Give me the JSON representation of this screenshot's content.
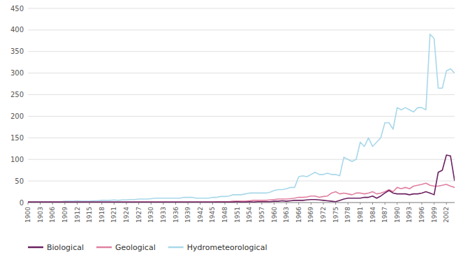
{
  "chart_data": {
    "type": "line",
    "x": [
      1900,
      1901,
      1902,
      1903,
      1904,
      1905,
      1906,
      1907,
      1908,
      1909,
      1910,
      1911,
      1912,
      1913,
      1914,
      1915,
      1916,
      1917,
      1918,
      1919,
      1920,
      1921,
      1922,
      1923,
      1924,
      1925,
      1926,
      1927,
      1928,
      1929,
      1930,
      1931,
      1932,
      1933,
      1934,
      1935,
      1936,
      1937,
      1938,
      1939,
      1940,
      1941,
      1942,
      1943,
      1944,
      1945,
      1946,
      1947,
      1948,
      1949,
      1950,
      1951,
      1952,
      1953,
      1954,
      1955,
      1956,
      1957,
      1958,
      1959,
      1960,
      1961,
      1962,
      1963,
      1964,
      1965,
      1966,
      1967,
      1968,
      1969,
      1970,
      1971,
      1972,
      1973,
      1974,
      1975,
      1976,
      1977,
      1978,
      1979,
      1980,
      1981,
      1982,
      1983,
      1984,
      1985,
      1986,
      1987,
      1988,
      1989,
      1990,
      1991,
      1992,
      1993,
      1994,
      1995,
      1996,
      1997,
      1998,
      1999,
      2000,
      2001,
      2002,
      2003,
      2004
    ],
    "series": [
      {
        "name": "Biological",
        "color": "#6b2060",
        "values": [
          1,
          1,
          1,
          1,
          1,
          1,
          1,
          1,
          1,
          1,
          1,
          1,
          1,
          1,
          1,
          1,
          1,
          1,
          1,
          1,
          1,
          1,
          1,
          1,
          1,
          1,
          1,
          1,
          1,
          1,
          1,
          1,
          1,
          1,
          1,
          1,
          1,
          1,
          1,
          1,
          1,
          1,
          1,
          1,
          1,
          1,
          1,
          1,
          1,
          1,
          1,
          2,
          1,
          1,
          2,
          1,
          2,
          2,
          2,
          2,
          3,
          3,
          4,
          3,
          4,
          5,
          5,
          5,
          6,
          7,
          7,
          6,
          5,
          4,
          3,
          2,
          5,
          8,
          10,
          10,
          10,
          10,
          12,
          12,
          15,
          10,
          15,
          22,
          28,
          22,
          20,
          20,
          20,
          18,
          20,
          20,
          22,
          25,
          22,
          18,
          70,
          75,
          110,
          108,
          50
        ]
      },
      {
        "name": "Geological",
        "color": "#e080a0",
        "values": [
          1,
          1,
          1,
          1,
          1,
          1,
          1,
          1,
          1,
          1,
          1,
          1,
          1,
          1,
          1,
          1,
          1,
          1,
          1,
          1,
          1,
          1,
          1,
          1,
          1,
          1,
          1,
          1,
          1,
          1,
          1,
          1,
          1,
          1,
          1,
          1,
          1,
          1,
          1,
          1,
          1,
          1,
          1,
          1,
          1,
          1,
          2,
          2,
          2,
          2,
          3,
          3,
          3,
          3,
          4,
          5,
          5,
          5,
          5,
          6,
          7,
          8,
          8,
          8,
          9,
          10,
          12,
          12,
          13,
          15,
          15,
          12,
          14,
          15,
          22,
          25,
          20,
          22,
          20,
          18,
          22,
          22,
          20,
          22,
          25,
          20,
          22,
          25,
          30,
          25,
          35,
          32,
          35,
          32,
          38,
          40,
          42,
          45,
          40,
          38,
          38,
          40,
          42,
          38,
          35
        ]
      },
      {
        "name": "Hydrometeorological",
        "color": "#a8d8ea",
        "values": [
          2,
          2,
          2,
          2,
          2,
          2,
          2,
          2,
          2,
          3,
          3,
          3,
          4,
          3,
          3,
          3,
          4,
          4,
          5,
          5,
          5,
          6,
          5,
          6,
          6,
          7,
          7,
          8,
          8,
          8,
          9,
          10,
          10,
          10,
          10,
          10,
          10,
          10,
          12,
          12,
          12,
          10,
          10,
          10,
          10,
          12,
          12,
          14,
          14,
          15,
          18,
          18,
          18,
          20,
          22,
          22,
          22,
          22,
          22,
          24,
          28,
          30,
          30,
          32,
          35,
          35,
          60,
          62,
          60,
          65,
          70,
          65,
          65,
          68,
          65,
          65,
          62,
          105,
          100,
          95,
          100,
          140,
          130,
          150,
          130,
          140,
          150,
          185,
          185,
          170,
          220,
          215,
          220,
          215,
          210,
          220,
          220,
          215,
          390,
          380,
          265,
          265,
          305,
          310,
          300
        ]
      }
    ],
    "xlim": [
      1900,
      2004
    ],
    "xticks": [
      1900,
      1903,
      1906,
      1909,
      1912,
      1915,
      1918,
      1921,
      1924,
      1927,
      1930,
      1933,
      1936,
      1939,
      1942,
      1945,
      1948,
      1951,
      1954,
      1957,
      1960,
      1963,
      1966,
      1969,
      1972,
      1975,
      1978,
      1981,
      1984,
      1987,
      1990,
      1993,
      1996,
      1999,
      2002
    ],
    "ylim": [
      0,
      450
    ],
    "yticks": [
      0,
      50,
      100,
      150,
      200,
      250,
      300,
      350,
      400,
      450
    ],
    "grid": true,
    "legend": "bottom"
  }
}
